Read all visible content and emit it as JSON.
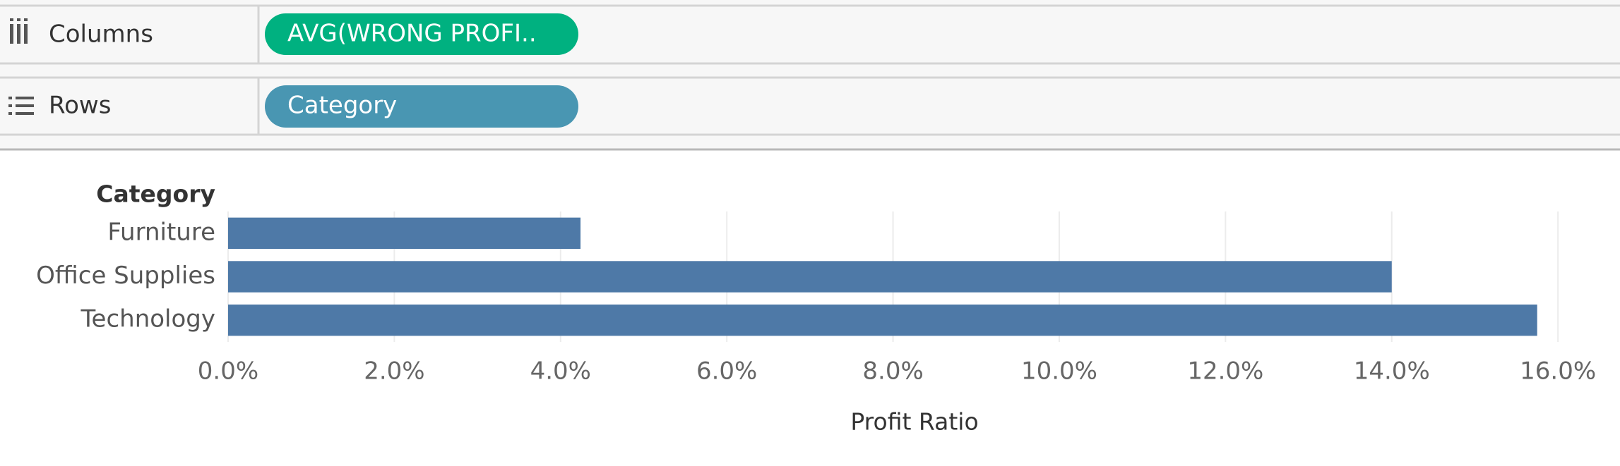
{
  "shelves": {
    "columns": {
      "label": "Columns",
      "pill": "AVG(WRONG PROFI.."
    },
    "rows": {
      "label": "Rows",
      "pill": "Category"
    }
  },
  "chart_data": {
    "type": "bar",
    "orientation": "horizontal",
    "row_header": "Category",
    "categories": [
      "Furniture",
      "Office Supplies",
      "Technology"
    ],
    "values": [
      4.24,
      14.0,
      15.75
    ],
    "color": "#4e79a7",
    "xlabel": "Profit Ratio",
    "xlim": [
      0,
      16.5
    ],
    "xticks": [
      {
        "value": 0,
        "label": "0.0%"
      },
      {
        "value": 2,
        "label": "2.0%"
      },
      {
        "value": 4,
        "label": "4.0%"
      },
      {
        "value": 6,
        "label": "6.0%"
      },
      {
        "value": 8,
        "label": "8.0%"
      },
      {
        "value": 10,
        "label": "10.0%"
      },
      {
        "value": 12,
        "label": "12.0%"
      },
      {
        "value": 14,
        "label": "14.0%"
      },
      {
        "value": 16,
        "label": "16.0%"
      }
    ],
    "grid": true
  }
}
